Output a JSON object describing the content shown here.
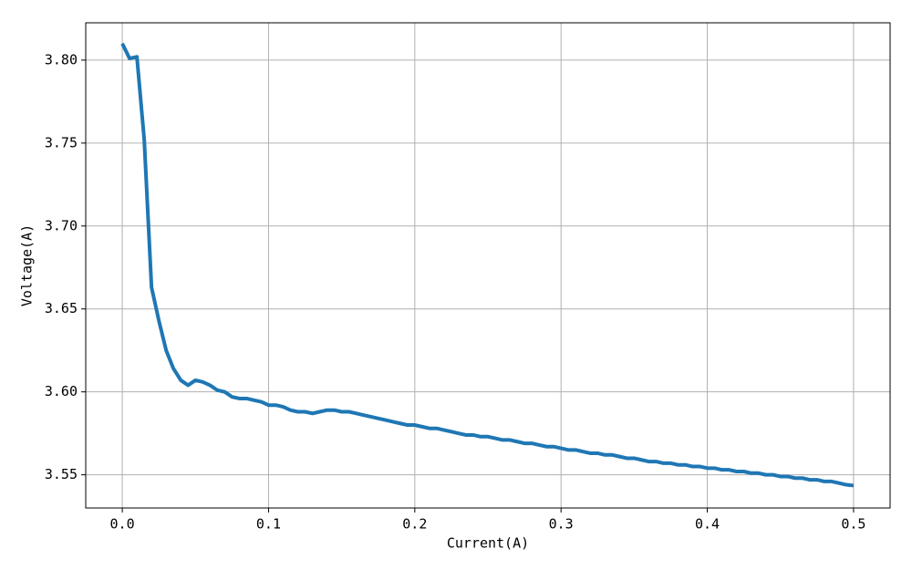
{
  "chart_data": {
    "type": "line",
    "x_label": "Current(A)",
    "y_label": "Voltage(A)",
    "x": [
      0,
      0.005,
      0.01,
      0.015,
      0.02,
      0.025,
      0.03,
      0.035,
      0.04,
      0.045,
      0.05,
      0.055,
      0.06,
      0.065,
      0.07,
      0.075,
      0.08,
      0.085,
      0.09,
      0.095,
      0.1,
      0.105,
      0.11,
      0.115,
      0.12,
      0.125,
      0.13,
      0.135,
      0.14,
      0.145,
      0.15,
      0.155,
      0.16,
      0.165,
      0.17,
      0.175,
      0.18,
      0.185,
      0.19,
      0.195,
      0.2,
      0.205,
      0.21,
      0.215,
      0.22,
      0.225,
      0.23,
      0.235,
      0.24,
      0.245,
      0.25,
      0.255,
      0.26,
      0.265,
      0.27,
      0.275,
      0.28,
      0.285,
      0.29,
      0.295,
      0.3,
      0.305,
      0.31,
      0.315,
      0.32,
      0.325,
      0.33,
      0.335,
      0.34,
      0.345,
      0.35,
      0.355,
      0.36,
      0.365,
      0.37,
      0.375,
      0.38,
      0.385,
      0.39,
      0.395,
      0.4,
      0.405,
      0.41,
      0.415,
      0.42,
      0.425,
      0.43,
      0.435,
      0.44,
      0.445,
      0.45,
      0.455,
      0.46,
      0.465,
      0.47,
      0.475,
      0.48,
      0.485,
      0.49,
      0.495,
      0.5
    ],
    "values": [
      3.81,
      3.801,
      3.802,
      3.752,
      3.663,
      3.643,
      3.625,
      3.614,
      3.607,
      3.604,
      3.607,
      3.606,
      3.604,
      3.601,
      3.6,
      3.597,
      3.596,
      3.596,
      3.595,
      3.594,
      3.592,
      3.592,
      3.591,
      3.589,
      3.588,
      3.588,
      3.587,
      3.588,
      3.589,
      3.589,
      3.588,
      3.588,
      3.587,
      3.586,
      3.585,
      3.584,
      3.583,
      3.582,
      3.581,
      3.58,
      3.58,
      3.579,
      3.578,
      3.578,
      3.577,
      3.576,
      3.575,
      3.574,
      3.574,
      3.573,
      3.573,
      3.572,
      3.571,
      3.571,
      3.57,
      3.569,
      3.569,
      3.568,
      3.567,
      3.567,
      3.566,
      3.565,
      3.565,
      3.564,
      3.563,
      3.563,
      3.562,
      3.562,
      3.561,
      3.56,
      3.56,
      3.559,
      3.558,
      3.558,
      3.557,
      3.557,
      3.556,
      3.556,
      3.555,
      3.555,
      3.554,
      3.554,
      3.553,
      3.553,
      3.552,
      3.552,
      3.551,
      3.551,
      3.55,
      3.55,
      3.549,
      3.549,
      3.548,
      3.548,
      3.547,
      3.547,
      3.546,
      3.546,
      3.545,
      3.544,
      3.5435
    ],
    "color": "#1f77b4",
    "xlim": [
      -0.025,
      0.525
    ],
    "xticks": [
      {
        "value": 0,
        "label": "0.0"
      },
      0.1,
      0.2,
      0.3,
      0.4,
      0.5
    ],
    "ylim": [
      3.53,
      3.8225
    ],
    "yticks": [
      3.55,
      {
        "value": 3.6,
        "label": "3.60"
      },
      3.65,
      {
        "value": 3.7,
        "label": "3.70"
      },
      3.75,
      {
        "value": 3.8,
        "label": "3.80"
      }
    ],
    "grid": true
  }
}
